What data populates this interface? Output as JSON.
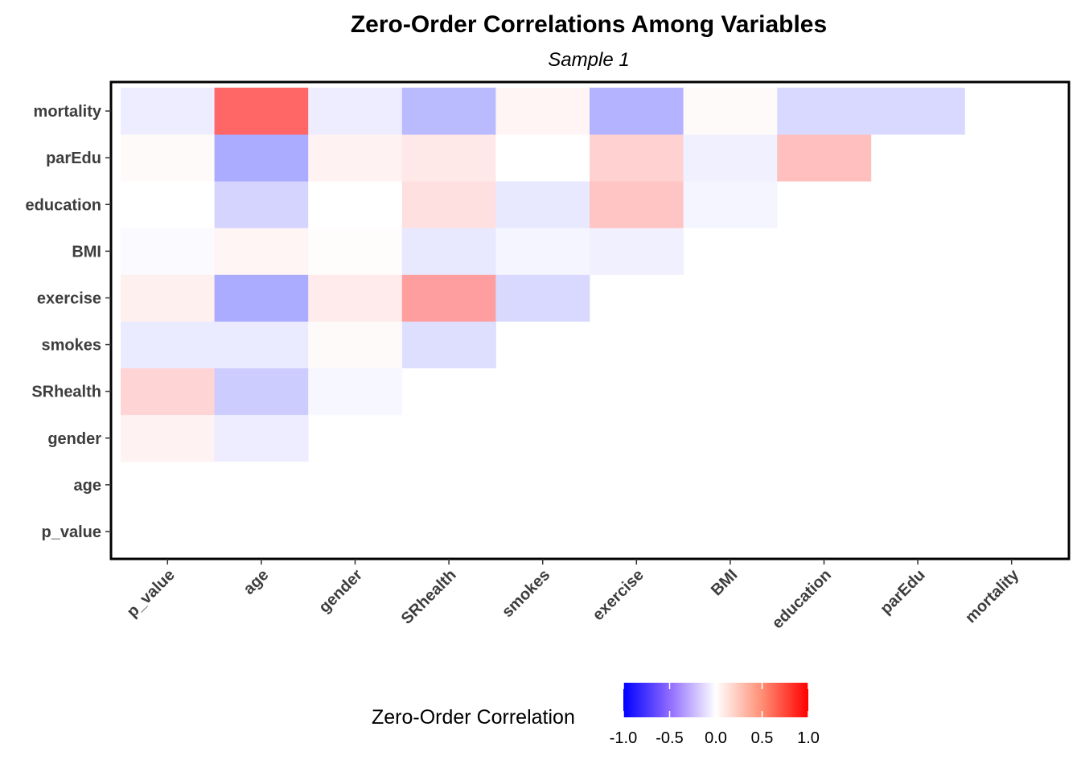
{
  "chart_data": {
    "type": "heatmap",
    "title": "Zero-Order Correlations Among Variables",
    "subtitle": "Sample 1",
    "x_categories": [
      "p_value",
      "age",
      "gender",
      "SRhealth",
      "smokes",
      "exercise",
      "BMI",
      "education",
      "parEdu",
      "mortality"
    ],
    "y_categories": [
      "p_value",
      "age",
      "gender",
      "SRhealth",
      "smokes",
      "exercise",
      "BMI",
      "education",
      "parEdu",
      "mortality"
    ],
    "cells": [
      {
        "x": "p_value",
        "y": "gender",
        "value": 0.05
      },
      {
        "x": "age",
        "y": "gender",
        "value": -0.07
      },
      {
        "x": "p_value",
        "y": "SRhealth",
        "value": 0.17
      },
      {
        "x": "age",
        "y": "SRhealth",
        "value": -0.2
      },
      {
        "x": "gender",
        "y": "SRhealth",
        "value": -0.03
      },
      {
        "x": "p_value",
        "y": "smokes",
        "value": -0.08
      },
      {
        "x": "age",
        "y": "smokes",
        "value": -0.08
      },
      {
        "x": "gender",
        "y": "smokes",
        "value": 0.02
      },
      {
        "x": "SRhealth",
        "y": "smokes",
        "value": -0.13
      },
      {
        "x": "p_value",
        "y": "exercise",
        "value": 0.06
      },
      {
        "x": "age",
        "y": "exercise",
        "value": -0.33
      },
      {
        "x": "gender",
        "y": "exercise",
        "value": 0.08
      },
      {
        "x": "SRhealth",
        "y": "exercise",
        "value": 0.38
      },
      {
        "x": "smokes",
        "y": "exercise",
        "value": -0.15
      },
      {
        "x": "p_value",
        "y": "BMI",
        "value": -0.02
      },
      {
        "x": "age",
        "y": "BMI",
        "value": 0.04
      },
      {
        "x": "gender",
        "y": "BMI",
        "value": 0.01
      },
      {
        "x": "SRhealth",
        "y": "BMI",
        "value": -0.09
      },
      {
        "x": "smokes",
        "y": "BMI",
        "value": -0.04
      },
      {
        "x": "exercise",
        "y": "BMI",
        "value": -0.06
      },
      {
        "x": "p_value",
        "y": "education",
        "value": 0.0
      },
      {
        "x": "age",
        "y": "education",
        "value": -0.17
      },
      {
        "x": "gender",
        "y": "education",
        "value": 0.0
      },
      {
        "x": "SRhealth",
        "y": "education",
        "value": 0.12
      },
      {
        "x": "smokes",
        "y": "education",
        "value": -0.09
      },
      {
        "x": "exercise",
        "y": "education",
        "value": 0.23
      },
      {
        "x": "BMI",
        "y": "education",
        "value": -0.04
      },
      {
        "x": "p_value",
        "y": "parEdu",
        "value": 0.02
      },
      {
        "x": "age",
        "y": "parEdu",
        "value": -0.33
      },
      {
        "x": "gender",
        "y": "parEdu",
        "value": 0.05
      },
      {
        "x": "SRhealth",
        "y": "parEdu",
        "value": 0.09
      },
      {
        "x": "smokes",
        "y": "parEdu",
        "value": 0.0
      },
      {
        "x": "exercise",
        "y": "parEdu",
        "value": 0.18
      },
      {
        "x": "BMI",
        "y": "parEdu",
        "value": -0.06
      },
      {
        "x": "education",
        "y": "parEdu",
        "value": 0.25
      },
      {
        "x": "p_value",
        "y": "mortality",
        "value": -0.07
      },
      {
        "x": "age",
        "y": "mortality",
        "value": 0.6
      },
      {
        "x": "gender",
        "y": "mortality",
        "value": -0.07
      },
      {
        "x": "SRhealth",
        "y": "mortality",
        "value": -0.27
      },
      {
        "x": "smokes",
        "y": "mortality",
        "value": 0.04
      },
      {
        "x": "exercise",
        "y": "mortality",
        "value": -0.3
      },
      {
        "x": "BMI",
        "y": "mortality",
        "value": 0.02
      },
      {
        "x": "education",
        "y": "mortality",
        "value": -0.15
      },
      {
        "x": "parEdu",
        "y": "mortality",
        "value": -0.15
      }
    ],
    "color_scale": {
      "low": "#0000ff",
      "mid": "#ffffff",
      "high": "#ff0000",
      "limits": [
        -1,
        1
      ]
    },
    "legend": {
      "title": "Zero-Order Correlation",
      "position": "bottom",
      "ticks": [
        -1,
        -0.5,
        0,
        0.5,
        1
      ],
      "tick_labels": [
        "-1.0",
        "-0.5",
        "0.0",
        "0.5",
        "1.0"
      ]
    },
    "grid": false
  }
}
